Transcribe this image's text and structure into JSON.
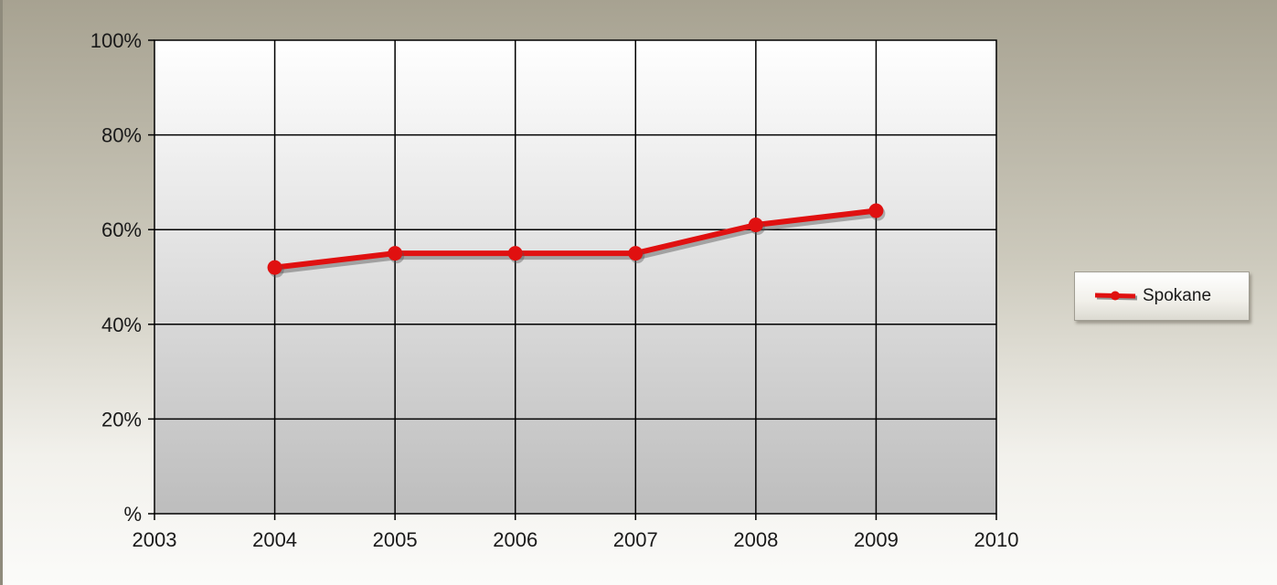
{
  "chart_data": {
    "type": "line",
    "x": [
      2004,
      2005,
      2006,
      2007,
      2008,
      2009
    ],
    "series": [
      {
        "name": "Spokane",
        "values": [
          52,
          55,
          55,
          55,
          61,
          64
        ]
      }
    ],
    "xlim": [
      2003,
      2010
    ],
    "ylim": [
      0,
      100
    ],
    "x_ticks": [
      "2003",
      "2004",
      "2005",
      "2006",
      "2007",
      "2008",
      "2009",
      "2010"
    ],
    "y_ticks": [
      "%",
      "20%",
      "40%",
      "60%",
      "80%",
      "100%"
    ],
    "y_tick_values": [
      0,
      20,
      40,
      60,
      80,
      100
    ],
    "grid": true,
    "legend_position": "right",
    "title": "",
    "xlabel": "",
    "ylabel": "",
    "series_color": "#e01010"
  }
}
